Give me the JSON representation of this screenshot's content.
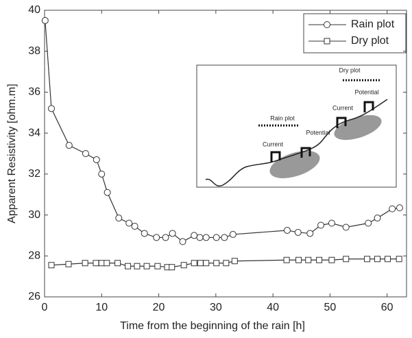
{
  "chart_data": {
    "type": "line",
    "xlabel": "Time from the beginning of the rain [h]",
    "ylabel": "Apparent Resistivity [ohm.m]",
    "xlim": [
      0,
      63.4
    ],
    "xticks": [
      0,
      10,
      20,
      30,
      40,
      50,
      60
    ],
    "ylim": [
      26,
      40
    ],
    "yticks": [
      26,
      28,
      30,
      32,
      34,
      36,
      38,
      40
    ],
    "legend": "upper right",
    "series": [
      {
        "name": "Rain plot",
        "color": "#333333",
        "marker": "circle",
        "x": [
          0.1,
          1.2,
          4.3,
          7.2,
          9.1,
          10,
          11,
          13,
          14.8,
          15.8,
          17.5,
          19.6,
          21.2,
          22.4,
          24.2,
          26.2,
          27.2,
          28.3,
          30.1,
          31.5,
          33,
          42.5,
          44.4,
          46.5,
          48.4,
          50.3,
          52.8,
          56.7,
          58.3,
          60.9,
          62.2
        ],
        "values": [
          39.5,
          35.2,
          33.4,
          33.0,
          32.7,
          32.0,
          31.1,
          29.85,
          29.6,
          29.45,
          29.1,
          28.9,
          28.9,
          29.1,
          28.7,
          29.0,
          28.9,
          28.9,
          28.9,
          28.9,
          29.05,
          29.25,
          29.15,
          29.1,
          29.5,
          29.6,
          29.4,
          29.6,
          29.85,
          30.3,
          30.35
        ]
      },
      {
        "name": "Dry plot",
        "color": "#333333",
        "marker": "square",
        "x": [
          1.2,
          4.2,
          7.1,
          9,
          10,
          10.9,
          12.8,
          14.6,
          16.2,
          17.9,
          19.8,
          21.5,
          22.3,
          24.4,
          26.2,
          27.3,
          28.3,
          30.1,
          31.8,
          33.3,
          42.4,
          44.5,
          46.2,
          48.1,
          50.3,
          52.8,
          56.5,
          58.3,
          60.1,
          62.1
        ],
        "values": [
          27.55,
          27.6,
          27.65,
          27.65,
          27.65,
          27.65,
          27.65,
          27.5,
          27.5,
          27.5,
          27.5,
          27.45,
          27.45,
          27.55,
          27.65,
          27.65,
          27.65,
          27.65,
          27.65,
          27.75,
          27.8,
          27.8,
          27.8,
          27.8,
          27.8,
          27.85,
          27.85,
          27.85,
          27.85,
          27.85
        ]
      }
    ],
    "inset": {
      "labels": [
        "Dry plot",
        "Potential",
        "Current",
        "Rain plot",
        "Potential",
        "Current"
      ]
    }
  }
}
